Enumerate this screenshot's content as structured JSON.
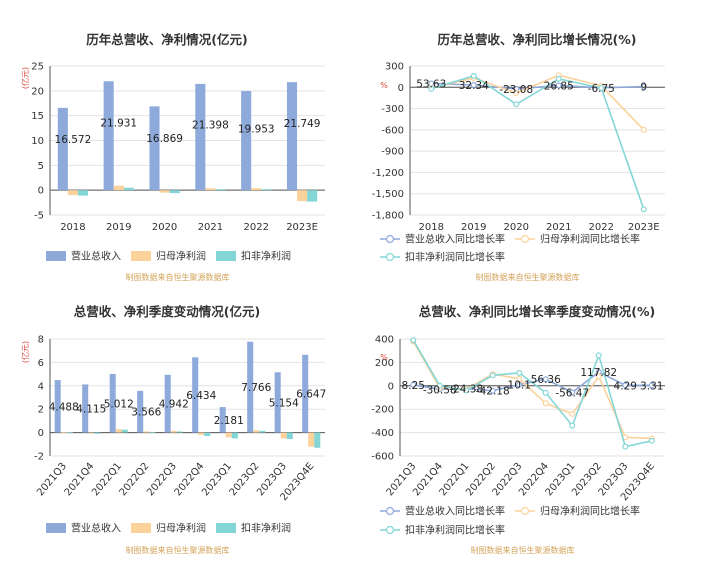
{
  "chart_data": [
    {
      "type": "bar",
      "title": "历年总营收、净利情况(亿元)",
      "unit_label": "(亿元)",
      "categories": [
        "2018",
        "2019",
        "2020",
        "2021",
        "2022",
        "2023E"
      ],
      "series": [
        {
          "name": "营业总收入",
          "color": "#8eaadb",
          "values": [
            16.572,
            21.931,
            16.869,
            21.398,
            19.953,
            21.749
          ],
          "labels": [
            "16.572",
            "21.931",
            "16.869",
            "21.398",
            "19.953",
            "21.749"
          ]
        },
        {
          "name": "归母净利润",
          "color": "#fbd29c",
          "values": [
            -1.0,
            0.9,
            -0.5,
            0.4,
            0.4,
            -2.2
          ],
          "labels": []
        },
        {
          "name": "扣非净利润",
          "color": "#84d6d6",
          "values": [
            -1.1,
            0.5,
            -0.6,
            0.2,
            0.2,
            -2.3
          ],
          "labels": []
        }
      ],
      "ylim": [
        -5,
        25
      ],
      "yticks": [
        -5,
        0,
        5,
        10,
        15,
        20,
        25
      ],
      "ytick_labels": [
        "-5",
        "0",
        "5",
        "10",
        "15",
        "20",
        "25"
      ],
      "grid": true,
      "legend": "bottom",
      "source": "制图数据来自恒生聚源数据库"
    },
    {
      "type": "line",
      "title": "历年总营收、净利同比增长情况(%)",
      "unit_label": "%",
      "categories": [
        "2018",
        "2019",
        "2020",
        "2021",
        "2022",
        "2023E"
      ],
      "series": [
        {
          "name": "营业总收入同比增长率",
          "color": "#8eaadb",
          "values": [
            53.63,
            32.34,
            -23.08,
            26.85,
            -6.75,
            9
          ],
          "labels": [
            "53.63",
            "32.34",
            "-23.08",
            "26.85",
            "-6.75",
            "9"
          ]
        },
        {
          "name": "归母净利润同比增长率",
          "color": "#fbd29c",
          "values": [
            -10,
            130,
            -80,
            170,
            20,
            -600
          ],
          "labels": []
        },
        {
          "name": "扣非净利润同比增长率",
          "color": "#84d6d6",
          "values": [
            -20,
            160,
            -240,
            120,
            -10,
            -1720
          ],
          "labels": []
        }
      ],
      "ylim": [
        -1800,
        300
      ],
      "yticks": [
        -1800,
        -1500,
        -1200,
        -900,
        -600,
        -300,
        0,
        300
      ],
      "ytick_labels": [
        "-1,800",
        "-1,500",
        "-1,200",
        "-900",
        "-600",
        "-300",
        "0",
        "300"
      ],
      "grid": true,
      "legend": "bottom",
      "source": "制图数据来自恒生聚源数据库"
    },
    {
      "type": "bar",
      "title": "总营收、净利季度变动情况(亿元)",
      "unit_label": "(亿元)",
      "categories": [
        "2021Q3",
        "2021Q4",
        "2022Q1",
        "2022Q2",
        "2022Q3",
        "2022Q4",
        "2023Q1",
        "2023Q2",
        "2023Q3",
        "2023Q4E"
      ],
      "series": [
        {
          "name": "营业总收入",
          "color": "#8eaadb",
          "values": [
            4.488,
            4.115,
            5.012,
            3.566,
            4.942,
            6.434,
            2.181,
            7.766,
            5.154,
            6.647
          ],
          "labels": [
            "4.488",
            "4.115",
            "5.012",
            "3.566",
            "4.942",
            "6.434",
            "2.181",
            "7.766",
            "5.154",
            "6.647"
          ]
        },
        {
          "name": "归母净利润",
          "color": "#fbd29c",
          "values": [
            0.05,
            -0.05,
            0.3,
            0.1,
            0.15,
            -0.2,
            -0.4,
            0.2,
            -0.5,
            -1.2
          ],
          "labels": []
        },
        {
          "name": "扣非净利润",
          "color": "#84d6d6",
          "values": [
            0.03,
            -0.1,
            0.25,
            0.05,
            0.1,
            -0.3,
            -0.5,
            0.15,
            -0.55,
            -1.3
          ],
          "labels": []
        }
      ],
      "ylim": [
        -2,
        8
      ],
      "yticks": [
        -2,
        0,
        2,
        4,
        6,
        8
      ],
      "ytick_labels": [
        "-2",
        "0",
        "2",
        "4",
        "6",
        "8"
      ],
      "grid": true,
      "legend": "bottom",
      "source": "制图数据来自恒生聚源数据库"
    },
    {
      "type": "line",
      "title": "总营收、净利同比增长率季度变动情况(%)",
      "unit_label": "%",
      "categories": [
        "2021Q3",
        "2021Q4",
        "2022Q1",
        "2022Q2",
        "2022Q3",
        "2022Q4",
        "2023Q1",
        "2023Q2",
        "2023Q3",
        "2023Q4E"
      ],
      "series": [
        {
          "name": "营业总收入同比增长率",
          "color": "#8eaadb",
          "values": [
            8.25,
            -30.58,
            -24.38,
            -42.18,
            10.1,
            56.36,
            -56.47,
            117.82,
            4.29,
            3.31
          ],
          "labels": [
            "8.25",
            "-30.58",
            "-24.38",
            "-42.18",
            "10.1",
            "56.36",
            "-56.47",
            "117.82",
            "4.29",
            "3.31"
          ]
        },
        {
          "name": "归母净利润同比增长率",
          "color": "#fbd29c",
          "values": [
            380,
            -20,
            -30,
            100,
            60,
            -150,
            -240,
            80,
            -440,
            -450
          ],
          "labels": []
        },
        {
          "name": "扣非净利润同比增长率",
          "color": "#84d6d6",
          "values": [
            390,
            0,
            -40,
            90,
            110,
            -60,
            -340,
            260,
            -520,
            -470
          ],
          "labels": []
        }
      ],
      "ylim": [
        -600,
        400
      ],
      "yticks": [
        -600,
        -400,
        -200,
        0,
        200,
        400
      ],
      "ytick_labels": [
        "-600",
        "-400",
        "-200",
        "0",
        "200",
        "400"
      ],
      "grid": true,
      "legend": "bottom",
      "source": "制图数据来自恒生聚源数据库"
    }
  ]
}
